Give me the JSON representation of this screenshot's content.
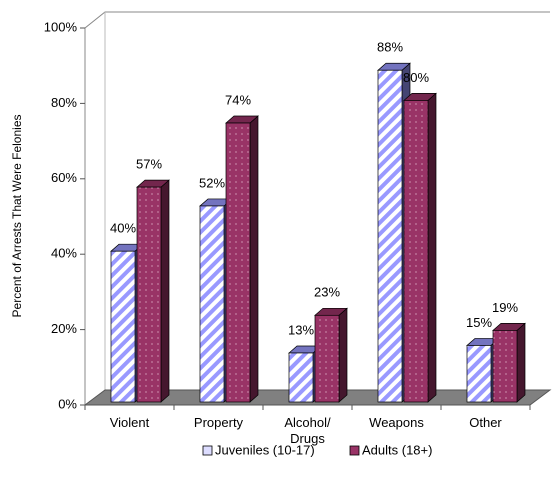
{
  "chart_data": {
    "type": "bar3d",
    "y_axis_label": "Percent of Arrests That Were Felonies",
    "categories": [
      "Violent",
      "Property",
      "Alcohol/\nDrugs",
      "Weapons",
      "Other"
    ],
    "series": [
      {
        "name": "Juveniles (10-17)",
        "color": "#9999ff",
        "values": [
          40,
          52,
          13,
          88,
          15
        ],
        "value_labels": [
          "40%",
          "52%",
          "13%",
          "88%",
          "15%"
        ]
      },
      {
        "name": "Adults (18+)",
        "color": "#993366",
        "values": [
          57,
          74,
          23,
          80,
          19
        ],
        "value_labels": [
          "57%",
          "74%",
          "23%",
          "80%",
          "19%"
        ]
      }
    ],
    "ylim": [
      0,
      100
    ],
    "yticks": [
      {
        "value": 0,
        "label": "0%"
      },
      {
        "value": 20,
        "label": "20%"
      },
      {
        "value": 40,
        "label": "40%"
      },
      {
        "value": 60,
        "label": "60%"
      },
      {
        "value": 80,
        "label": "80%"
      },
      {
        "value": 100,
        "label": "100%"
      }
    ],
    "legend": "bottom"
  }
}
